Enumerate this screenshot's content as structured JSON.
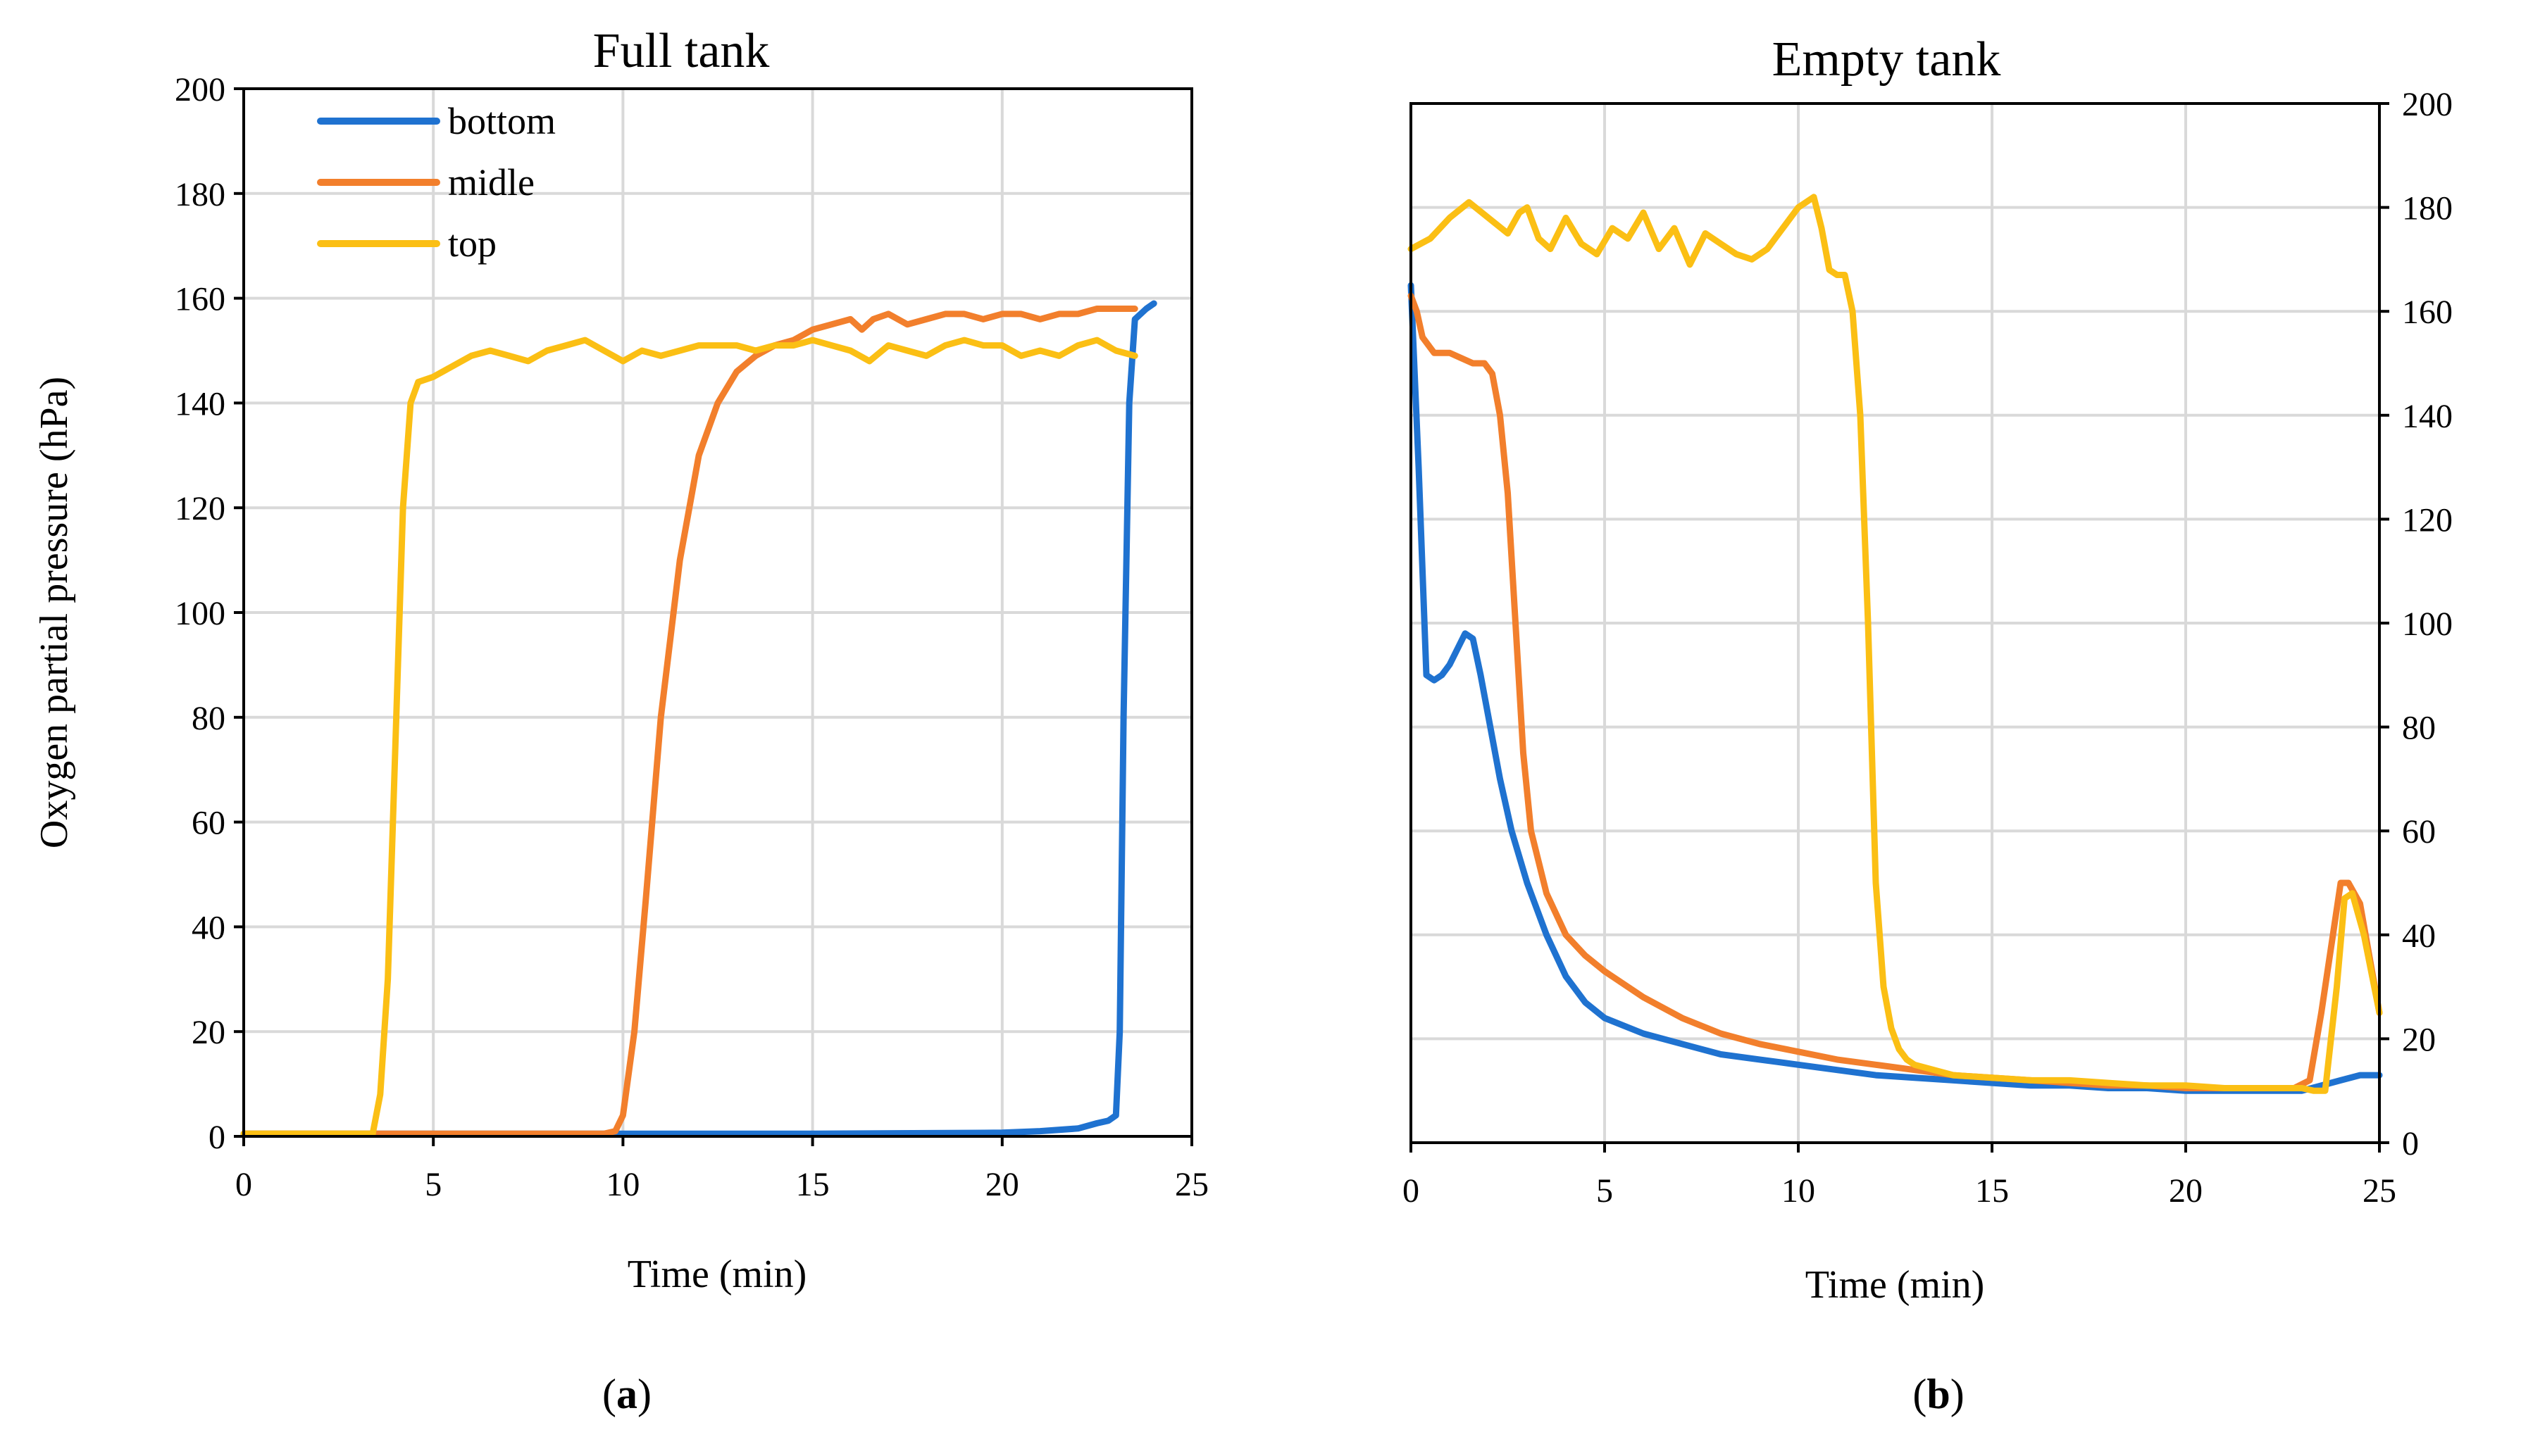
{
  "figure": {
    "caption_a": "a",
    "caption_b": "b"
  },
  "colors": {
    "bottom": "#1f72d0",
    "midle": "#f27f2c",
    "top": "#fbbf14"
  },
  "chart_data": [
    {
      "type": "line",
      "id": "a",
      "title": "Full tank",
      "xlabel": "Time (min)",
      "ylabel": "Oxygen partial pressure (hPa)",
      "xlim": [
        0,
        25
      ],
      "ylim": [
        0,
        200
      ],
      "xticks": [
        0,
        5,
        10,
        15,
        20,
        25
      ],
      "yticks": [
        0,
        20,
        40,
        60,
        80,
        100,
        120,
        140,
        160,
        180,
        200
      ],
      "y_axis_side": "left",
      "grid": true,
      "legend": {
        "position": "top-left",
        "entries": [
          "bottom",
          "midle",
          "top"
        ]
      },
      "series": [
        {
          "name": "bottom",
          "color_key": "bottom",
          "x": [
            0,
            5,
            10,
            15,
            20,
            21,
            22,
            22.5,
            22.8,
            23.0,
            23.1,
            23.2,
            23.35,
            23.5,
            23.8,
            24.0
          ],
          "y": [
            0.5,
            0.5,
            0.5,
            0.5,
            0.7,
            1,
            1.5,
            2.5,
            3,
            4,
            20,
            80,
            140,
            156,
            158,
            159
          ]
        },
        {
          "name": "midle",
          "color_key": "midle",
          "x": [
            0,
            5,
            9.5,
            9.8,
            10.0,
            10.3,
            10.6,
            11.0,
            11.5,
            12.0,
            12.5,
            13.0,
            13.5,
            14.0,
            14.5,
            15.0,
            15.5,
            16.0,
            16.3,
            16.6,
            17.0,
            17.5,
            18.0,
            18.5,
            19.0,
            19.5,
            20.0,
            20.5,
            21.0,
            21.5,
            22.0,
            22.5,
            23.0,
            23.5
          ],
          "y": [
            0.5,
            0.5,
            0.5,
            1,
            4,
            20,
            45,
            80,
            110,
            130,
            140,
            146,
            149,
            151,
            152,
            154,
            155,
            156,
            154,
            156,
            157,
            155,
            156,
            157,
            157,
            156,
            157,
            157,
            156,
            157,
            157,
            158,
            158,
            158
          ]
        },
        {
          "name": "top",
          "color_key": "top",
          "x": [
            0,
            3.0,
            3.4,
            3.6,
            3.8,
            4.0,
            4.2,
            4.4,
            4.6,
            5.0,
            5.5,
            6.0,
            6.5,
            7.0,
            7.5,
            8.0,
            8.5,
            9.0,
            9.5,
            10.0,
            10.5,
            11.0,
            11.5,
            12.0,
            12.5,
            13.0,
            13.5,
            14.0,
            14.5,
            15.0,
            15.5,
            16.0,
            16.5,
            17.0,
            17.5,
            18.0,
            18.5,
            19.0,
            19.5,
            20.0,
            20.5,
            21.0,
            21.5,
            22.0,
            22.5,
            23.0,
            23.5
          ],
          "y": [
            0.5,
            0.5,
            0.5,
            8,
            30,
            75,
            120,
            140,
            144,
            145,
            147,
            149,
            150,
            149,
            148,
            150,
            151,
            152,
            150,
            148,
            150,
            149,
            150,
            151,
            151,
            151,
            150,
            151,
            151,
            152,
            151,
            150,
            148,
            151,
            150,
            149,
            151,
            152,
            151,
            151,
            149,
            150,
            149,
            151,
            152,
            150,
            149
          ]
        }
      ]
    },
    {
      "type": "line",
      "id": "b",
      "title": "Empty tank",
      "xlabel": "Time (min)",
      "ylabel": "",
      "xlim": [
        0,
        25
      ],
      "ylim": [
        0,
        200
      ],
      "xticks": [
        0,
        5,
        10,
        15,
        20,
        25
      ],
      "yticks": [
        0,
        20,
        40,
        60,
        80,
        100,
        120,
        140,
        160,
        180,
        200
      ],
      "y_axis_side": "right",
      "grid": true,
      "series": [
        {
          "name": "bottom",
          "color_key": "bottom",
          "x": [
            0,
            0.2,
            0.4,
            0.6,
            0.8,
            1.0,
            1.2,
            1.4,
            1.6,
            1.8,
            2.0,
            2.3,
            2.6,
            3.0,
            3.5,
            4.0,
            4.5,
            5.0,
            6.0,
            7.0,
            8.0,
            9.0,
            9.5,
            10.0,
            11.0,
            12.0,
            13.0,
            14.0,
            15.0,
            16.0,
            17.0,
            18.0,
            19.0,
            20.0,
            21.0,
            22.0,
            23.0,
            23.5,
            24.0,
            24.5,
            25.0
          ],
          "y": [
            165,
            130,
            90,
            89,
            90,
            92,
            95,
            98,
            97,
            90,
            82,
            70,
            60,
            50,
            40,
            32,
            27,
            24,
            21,
            19,
            17,
            16,
            15.5,
            15,
            14,
            13,
            12.5,
            12,
            11.5,
            11,
            11,
            10.5,
            10.5,
            10,
            10,
            10,
            10,
            11,
            12,
            13,
            13
          ]
        },
        {
          "name": "midle",
          "color_key": "midle",
          "x": [
            0,
            0.15,
            0.3,
            0.6,
            1.0,
            1.3,
            1.6,
            1.9,
            2.1,
            2.3,
            2.5,
            2.7,
            2.9,
            3.1,
            3.5,
            4.0,
            4.5,
            5.0,
            6.0,
            7.0,
            8.0,
            9.0,
            10.0,
            11.0,
            12.0,
            13.0,
            14.0,
            15.0,
            16.0,
            17.0,
            18.0,
            19.0,
            20.0,
            21.0,
            22.0,
            22.8,
            23.2,
            23.5,
            23.8,
            24.0,
            24.2,
            24.5,
            25.0
          ],
          "y": [
            163,
            160,
            155,
            152,
            152,
            151,
            150,
            150,
            148,
            140,
            125,
            100,
            75,
            60,
            48,
            40,
            36,
            33,
            28,
            24,
            21,
            19,
            17.5,
            16,
            15,
            14,
            13,
            12.5,
            12,
            11.5,
            11,
            11,
            10.5,
            10.5,
            10.5,
            10.5,
            12,
            25,
            40,
            50,
            50,
            46,
            25
          ]
        },
        {
          "name": "top",
          "color_key": "top",
          "x": [
            0,
            0.5,
            1.0,
            1.5,
            2.0,
            2.5,
            2.8,
            3.0,
            3.3,
            3.6,
            4.0,
            4.4,
            4.8,
            5.2,
            5.6,
            6.0,
            6.4,
            6.8,
            7.2,
            7.6,
            8.0,
            8.4,
            8.8,
            9.2,
            9.6,
            10.0,
            10.4,
            10.6,
            10.8,
            11.0,
            11.2,
            11.4,
            11.6,
            11.8,
            12.0,
            12.2,
            12.4,
            12.6,
            12.8,
            13.0,
            13.5,
            14.0,
            15.0,
            16.0,
            17.0,
            18.0,
            19.0,
            20.0,
            21.0,
            22.0,
            23.0,
            23.3,
            23.6,
            23.9,
            24.1,
            24.3,
            24.6,
            25.0
          ],
          "y": [
            172,
            174,
            178,
            181,
            178,
            175,
            179,
            180,
            174,
            172,
            178,
            173,
            171,
            176,
            174,
            179,
            172,
            176,
            169,
            175,
            173,
            171,
            170,
            172,
            176,
            180,
            182,
            176,
            168,
            167,
            167,
            160,
            140,
            100,
            50,
            30,
            22,
            18,
            16,
            15,
            14,
            13,
            12.5,
            12,
            12,
            11.5,
            11,
            11,
            10.5,
            10.5,
            10.5,
            10,
            10,
            30,
            47,
            48,
            40,
            25
          ]
        }
      ]
    }
  ]
}
